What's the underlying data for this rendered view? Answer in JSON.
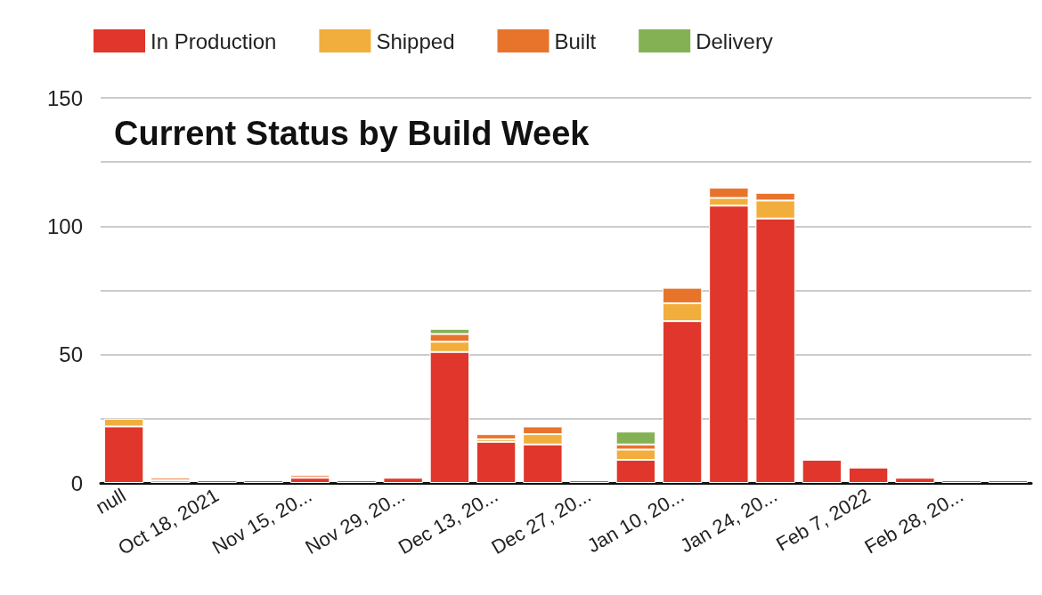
{
  "chart_data": {
    "type": "bar",
    "title": "Current Status by Build Week",
    "stacked": true,
    "categories": [
      "null",
      null,
      "Oct 18, 2021",
      null,
      "Nov 15, 20...",
      null,
      "Nov 29, 20...",
      null,
      "Dec 13, 20...",
      null,
      "Dec 27, 20...",
      null,
      "Jan 10, 20...",
      null,
      "Jan 24, 20...",
      null,
      "Feb 7, 2022",
      null,
      "Feb 28, 20...",
      null
    ],
    "series": [
      {
        "name": "In Production",
        "color": "#e0362b",
        "values": [
          22,
          null,
          1,
          1,
          2,
          1,
          2,
          51,
          16,
          15,
          1,
          9,
          63,
          108,
          103,
          9,
          6,
          2,
          1,
          1
        ]
      },
      {
        "name": "Shipped",
        "color": "#f2ae3c",
        "values": [
          3,
          1,
          null,
          null,
          null,
          null,
          null,
          4,
          1,
          4,
          null,
          4,
          7,
          3,
          7,
          null,
          null,
          null,
          null,
          null
        ]
      },
      {
        "name": "Built",
        "color": "#e8742c",
        "values": [
          null,
          1,
          null,
          null,
          1,
          null,
          null,
          3,
          2,
          3,
          null,
          2,
          6,
          4,
          3,
          null,
          null,
          null,
          null,
          null
        ]
      },
      {
        "name": "Delivery",
        "color": "#84b153",
        "values": [
          null,
          null,
          null,
          null,
          null,
          null,
          null,
          2,
          null,
          null,
          null,
          5,
          null,
          null,
          null,
          null,
          null,
          null,
          null,
          null
        ]
      }
    ],
    "ylim": [
      0,
      150
    ],
    "yticks": [
      0,
      {
        "value": 25,
        "label": null
      },
      50,
      {
        "value": 75,
        "label": null
      },
      100,
      {
        "value": 125,
        "label": null
      },
      150
    ],
    "grid": "y",
    "legend": "top left"
  }
}
